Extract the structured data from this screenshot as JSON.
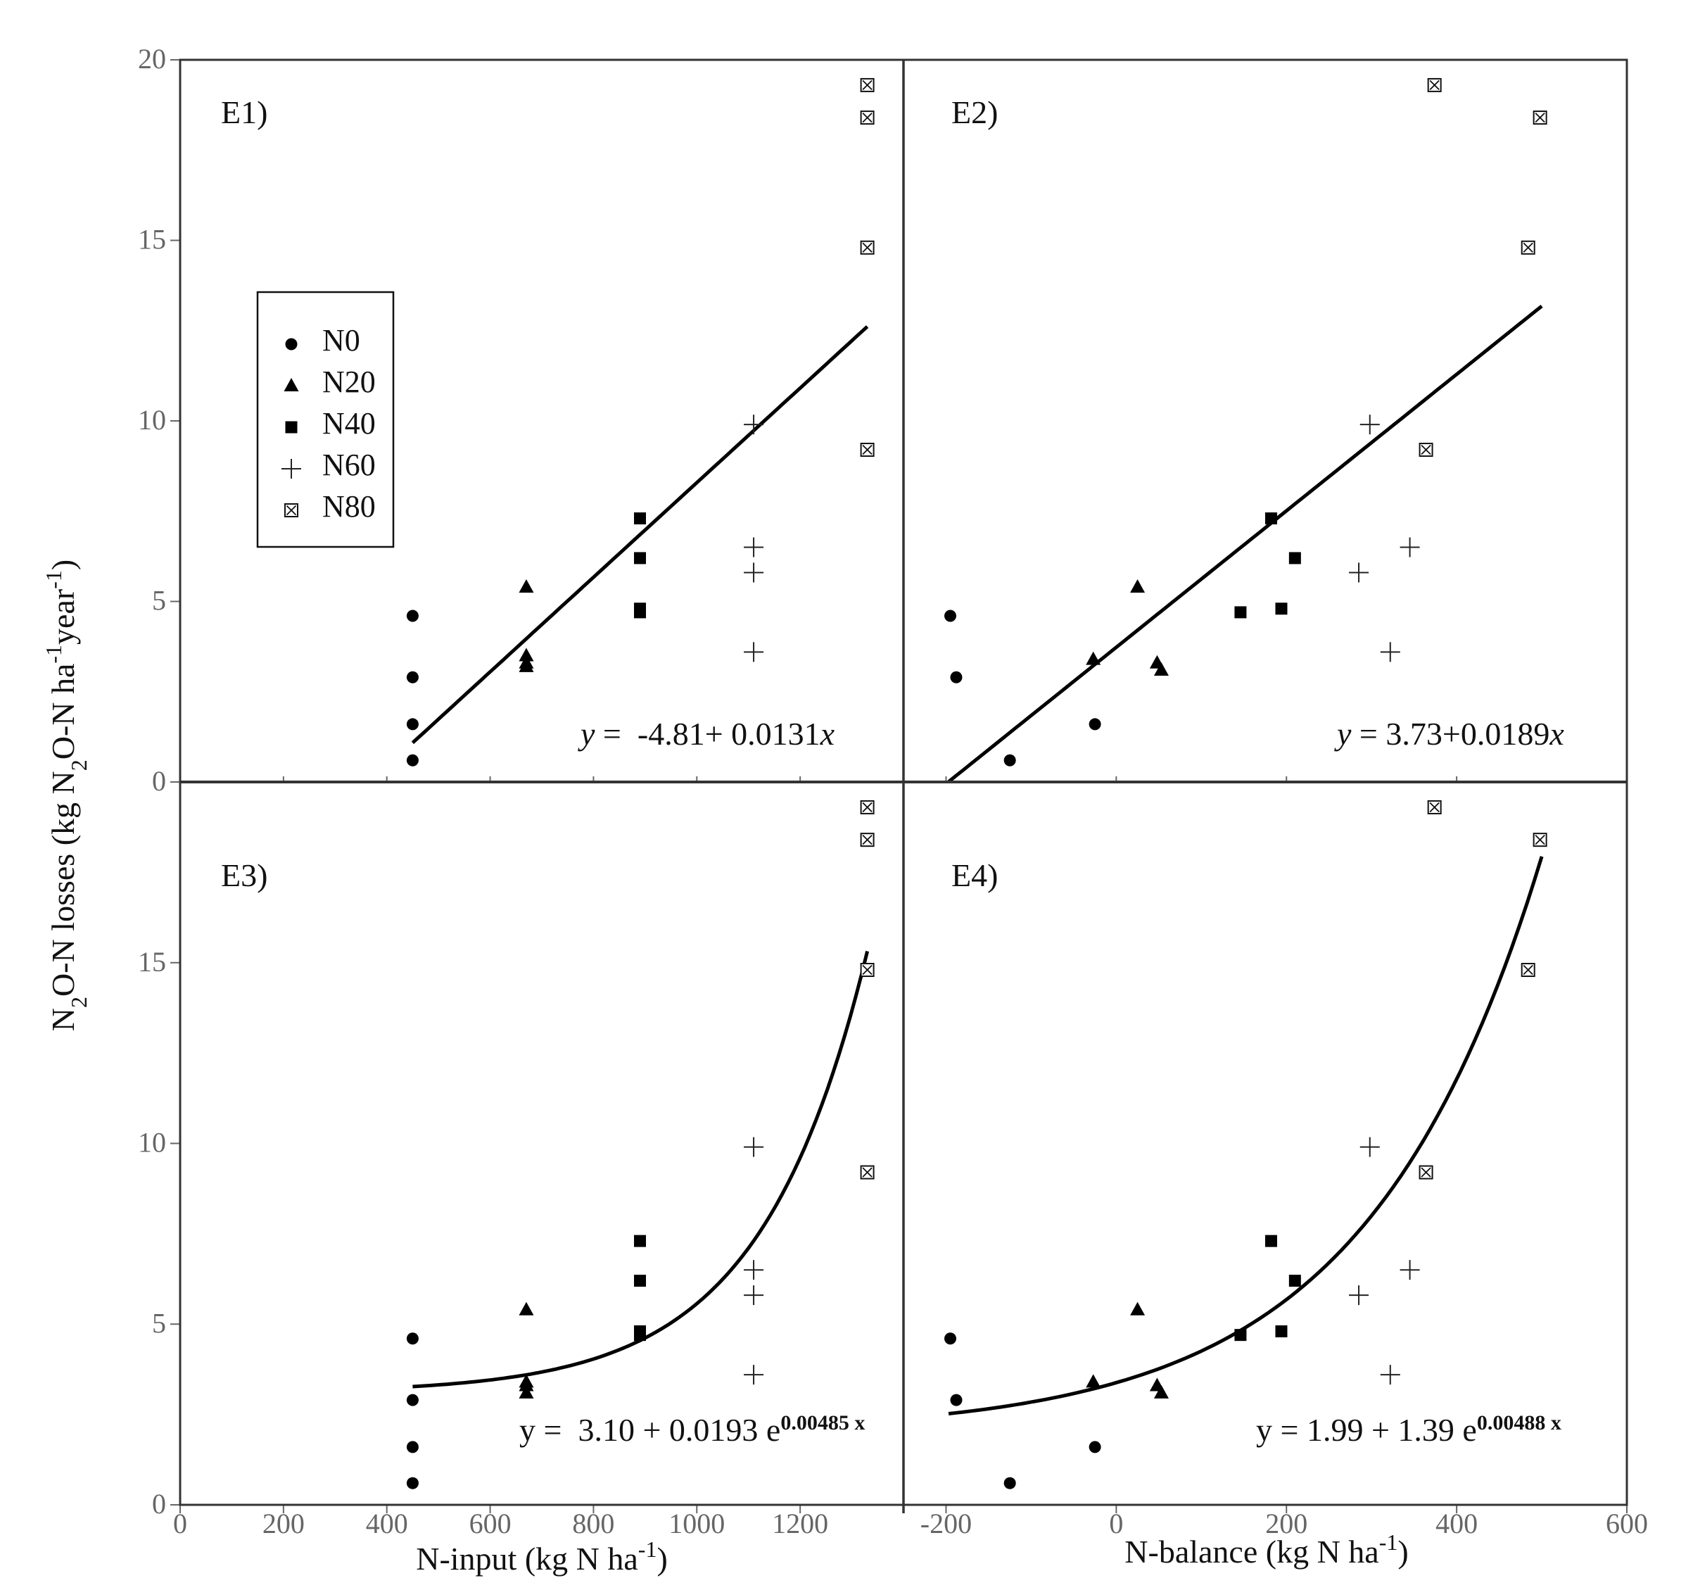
{
  "figure": {
    "y_label": {
      "pre": "N",
      "sub1": "2",
      "mid": "O-N losses (kg N",
      "sub2": "2",
      "post": "O-N ha",
      "sup1": "-1",
      "post2": "year",
      "sup2": "-1",
      "close": ")"
    },
    "x_label_left": {
      "text": "N-input (kg N ha",
      "sup": "-1",
      "close": ")"
    },
    "x_label_right": {
      "text": "N-balance (kg N ha",
      "sup": "-1",
      "close": ")"
    },
    "legend": [
      {
        "label": "N0",
        "marker": "circle"
      },
      {
        "label": "N20",
        "marker": "triangle"
      },
      {
        "label": "N40",
        "marker": "square"
      },
      {
        "label": "N60",
        "marker": "plus"
      },
      {
        "label": "N80",
        "marker": "boxed-x"
      }
    ],
    "colors": {
      "axis": "#333333",
      "tick": "#666666",
      "marker": "#000000",
      "line": "#000000"
    }
  },
  "chart_data": [
    {
      "id": "E1",
      "panel_label": "E1)",
      "type": "scatter",
      "xlabel": "N-input (kg N ha-1)",
      "ylabel": "N2O-N losses (kg N2O-N ha-1year-1)",
      "xlim": [
        0,
        1400
      ],
      "ylim": [
        0,
        20
      ],
      "xticks": [
        "0",
        "200",
        "400",
        "600",
        "800",
        "1000",
        "1200"
      ],
      "yticks": [
        "0",
        "5",
        "10",
        "15",
        "20"
      ],
      "equation": {
        "y": "y",
        "eq": " = ",
        "rest": " -4.81+ 0.0131",
        "x": "x"
      },
      "fit": {
        "kind": "linear",
        "a": -4.81,
        "b": 0.0131,
        "x_range": [
          450,
          1330
        ]
      },
      "series": [
        {
          "name": "N0",
          "points": [
            [
              450,
              4.6
            ],
            [
              450,
              2.9
            ],
            [
              450,
              1.6
            ],
            [
              450,
              0.6
            ]
          ]
        },
        {
          "name": "N20",
          "points": [
            [
              670,
              5.4
            ],
            [
              670,
              3.5
            ],
            [
              670,
              3.3
            ],
            [
              670,
              3.2
            ]
          ]
        },
        {
          "name": "N40",
          "points": [
            [
              890,
              7.3
            ],
            [
              890,
              6.2
            ],
            [
              890,
              4.8
            ],
            [
              890,
              4.7
            ]
          ]
        },
        {
          "name": "N60",
          "points": [
            [
              1110,
              9.9
            ],
            [
              1110,
              6.5
            ],
            [
              1110,
              5.8
            ],
            [
              1110,
              3.6
            ]
          ]
        },
        {
          "name": "N80",
          "points": [
            [
              1330,
              19.3
            ],
            [
              1330,
              18.4
            ],
            [
              1330,
              14.8
            ],
            [
              1330,
              9.2
            ]
          ]
        }
      ]
    },
    {
      "id": "E2",
      "panel_label": "E2)",
      "type": "scatter",
      "xlabel": "N-balance (kg N ha-1)",
      "ylabel": "N2O-N losses (kg N2O-N ha-1year-1)",
      "xlim": [
        -250,
        600
      ],
      "ylim": [
        0,
        20
      ],
      "xticks": [
        "-200",
        "0",
        "200",
        "400",
        "600"
      ],
      "yticks": [
        "0",
        "5",
        "10",
        "15",
        "20"
      ],
      "equation": {
        "y": "y",
        "eq": " = ",
        "rest": "3.73+0.0189",
        "x": "x"
      },
      "fit": {
        "kind": "linear",
        "a": 3.73,
        "b": 0.0189,
        "x_range": [
          -197,
          500
        ]
      },
      "series": [
        {
          "name": "N0",
          "points": [
            [
              -195,
              4.6
            ],
            [
              -188,
              2.9
            ],
            [
              -125,
              0.6
            ],
            [
              -25,
              1.6
            ]
          ]
        },
        {
          "name": "N20",
          "points": [
            [
              25,
              5.4
            ],
            [
              -27,
              3.4
            ],
            [
              48,
              3.3
            ],
            [
              53,
              3.1
            ]
          ]
        },
        {
          "name": "N40",
          "points": [
            [
              182,
              7.3
            ],
            [
              210,
              6.2
            ],
            [
              146,
              4.7
            ],
            [
              194,
              4.8
            ]
          ]
        },
        {
          "name": "N60",
          "points": [
            [
              298,
              9.9
            ],
            [
              345,
              6.5
            ],
            [
              285,
              5.8
            ],
            [
              322,
              3.6
            ]
          ]
        },
        {
          "name": "N80",
          "points": [
            [
              374,
              19.3
            ],
            [
              498,
              18.4
            ],
            [
              484,
              14.8
            ],
            [
              364,
              9.2
            ]
          ]
        }
      ]
    },
    {
      "id": "E3",
      "panel_label": "E3)",
      "type": "scatter",
      "xlabel": "N-input (kg N ha-1)",
      "ylabel": "N2O-N losses (kg N2O-N ha-1year-1)",
      "xlim": [
        0,
        1400
      ],
      "ylim": [
        0,
        20
      ],
      "xticks": [
        "0",
        "200",
        "400",
        "600",
        "800",
        "1000",
        "1200"
      ],
      "yticks": [
        "0",
        "5",
        "10",
        "15"
      ],
      "equation": {
        "lead": "y =  3.10 + 0.0193 e",
        "sup": "0.00485 x"
      },
      "fit": {
        "kind": "exponential",
        "a": 3.1,
        "b": 0.0193,
        "c": 0.00485,
        "x_range": [
          450,
          1330
        ]
      },
      "series": [
        {
          "name": "N0",
          "points": [
            [
              450,
              4.6
            ],
            [
              450,
              2.9
            ],
            [
              450,
              1.6
            ],
            [
              450,
              0.6
            ]
          ]
        },
        {
          "name": "N20",
          "points": [
            [
              670,
              5.4
            ],
            [
              670,
              3.4
            ],
            [
              670,
              3.3
            ],
            [
              670,
              3.1
            ]
          ]
        },
        {
          "name": "N40",
          "points": [
            [
              890,
              7.3
            ],
            [
              890,
              6.2
            ],
            [
              890,
              4.8
            ],
            [
              890,
              4.7
            ]
          ]
        },
        {
          "name": "N60",
          "points": [
            [
              1110,
              9.9
            ],
            [
              1110,
              6.5
            ],
            [
              1110,
              5.8
            ],
            [
              1110,
              3.6
            ]
          ]
        },
        {
          "name": "N80",
          "points": [
            [
              1330,
              19.3
            ],
            [
              1330,
              18.4
            ],
            [
              1330,
              14.8
            ],
            [
              1330,
              9.2
            ]
          ]
        }
      ]
    },
    {
      "id": "E4",
      "panel_label": "E4)",
      "type": "scatter",
      "xlabel": "N-balance (kg N ha-1)",
      "ylabel": "N2O-N losses (kg N2O-N ha-1year-1)",
      "xlim": [
        -250,
        600
      ],
      "ylim": [
        0,
        20
      ],
      "xticks": [
        "-200",
        "0",
        "200",
        "400",
        "600"
      ],
      "yticks": [
        "0",
        "5",
        "10",
        "15"
      ],
      "equation": {
        "lead": "y = 1.99 + 1.39 e",
        "sup": "0.00488 x"
      },
      "fit": {
        "kind": "exponential",
        "a": 1.99,
        "b": 1.39,
        "c": 0.00488,
        "x_range": [
          -197,
          500
        ]
      },
      "series": [
        {
          "name": "N0",
          "points": [
            [
              -195,
              4.6
            ],
            [
              -188,
              2.9
            ],
            [
              -125,
              0.6
            ],
            [
              -25,
              1.6
            ]
          ]
        },
        {
          "name": "N20",
          "points": [
            [
              25,
              5.4
            ],
            [
              -27,
              3.4
            ],
            [
              48,
              3.3
            ],
            [
              53,
              3.1
            ]
          ]
        },
        {
          "name": "N40",
          "points": [
            [
              182,
              7.3
            ],
            [
              210,
              6.2
            ],
            [
              146,
              4.7
            ],
            [
              194,
              4.8
            ]
          ]
        },
        {
          "name": "N60",
          "points": [
            [
              298,
              9.9
            ],
            [
              345,
              6.5
            ],
            [
              285,
              5.8
            ],
            [
              322,
              3.6
            ]
          ]
        },
        {
          "name": "N80",
          "points": [
            [
              374,
              19.3
            ],
            [
              498,
              18.4
            ],
            [
              484,
              14.8
            ],
            [
              364,
              9.2
            ]
          ]
        }
      ]
    }
  ]
}
